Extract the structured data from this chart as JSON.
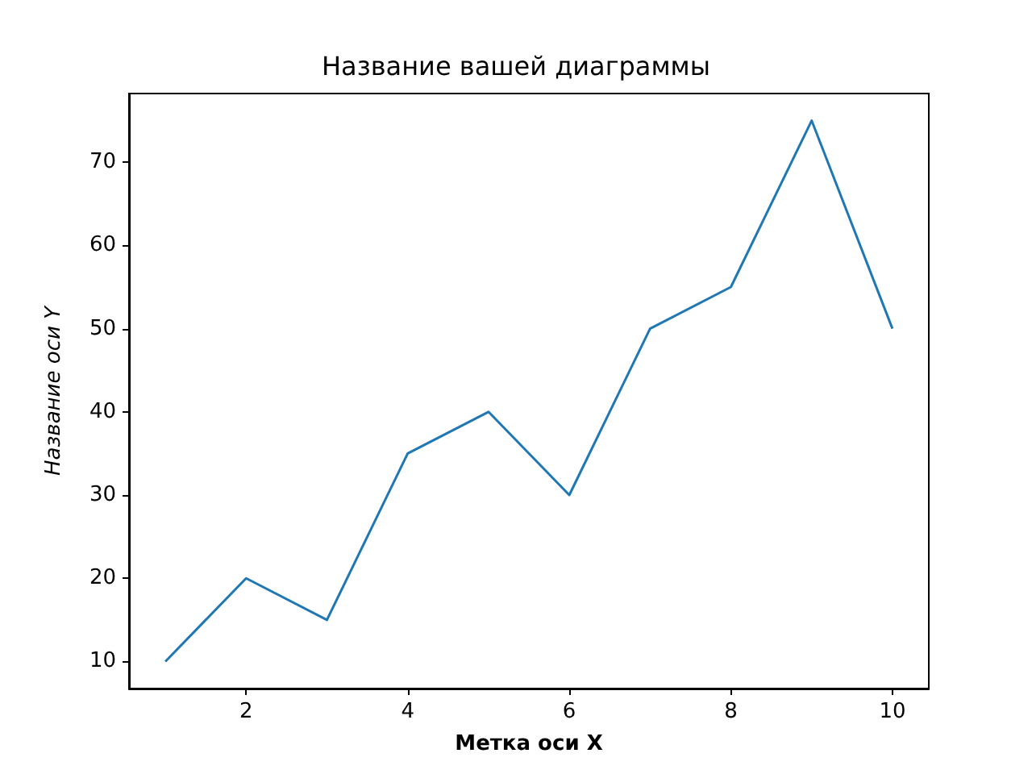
{
  "chart_data": {
    "type": "line",
    "title": "Название вашей диаграммы",
    "xlabel": "Метка оси X",
    "ylabel": "Название оси Y",
    "x": [
      1,
      2,
      3,
      4,
      5,
      6,
      7,
      8,
      9,
      10
    ],
    "series": [
      {
        "color": "#1f77b4",
        "values": [
          10,
          20,
          15,
          35,
          40,
          30,
          50,
          55,
          75,
          50
        ]
      }
    ],
    "xlim": [
      0.55,
      10.45
    ],
    "xticks": [
      2,
      4,
      6,
      8,
      10
    ],
    "ylim": [
      6.75,
      78.25
    ],
    "yticks": [
      10,
      20,
      30,
      40,
      50,
      60,
      70
    ],
    "grid": false,
    "marker": "none",
    "line_style": "solid"
  }
}
